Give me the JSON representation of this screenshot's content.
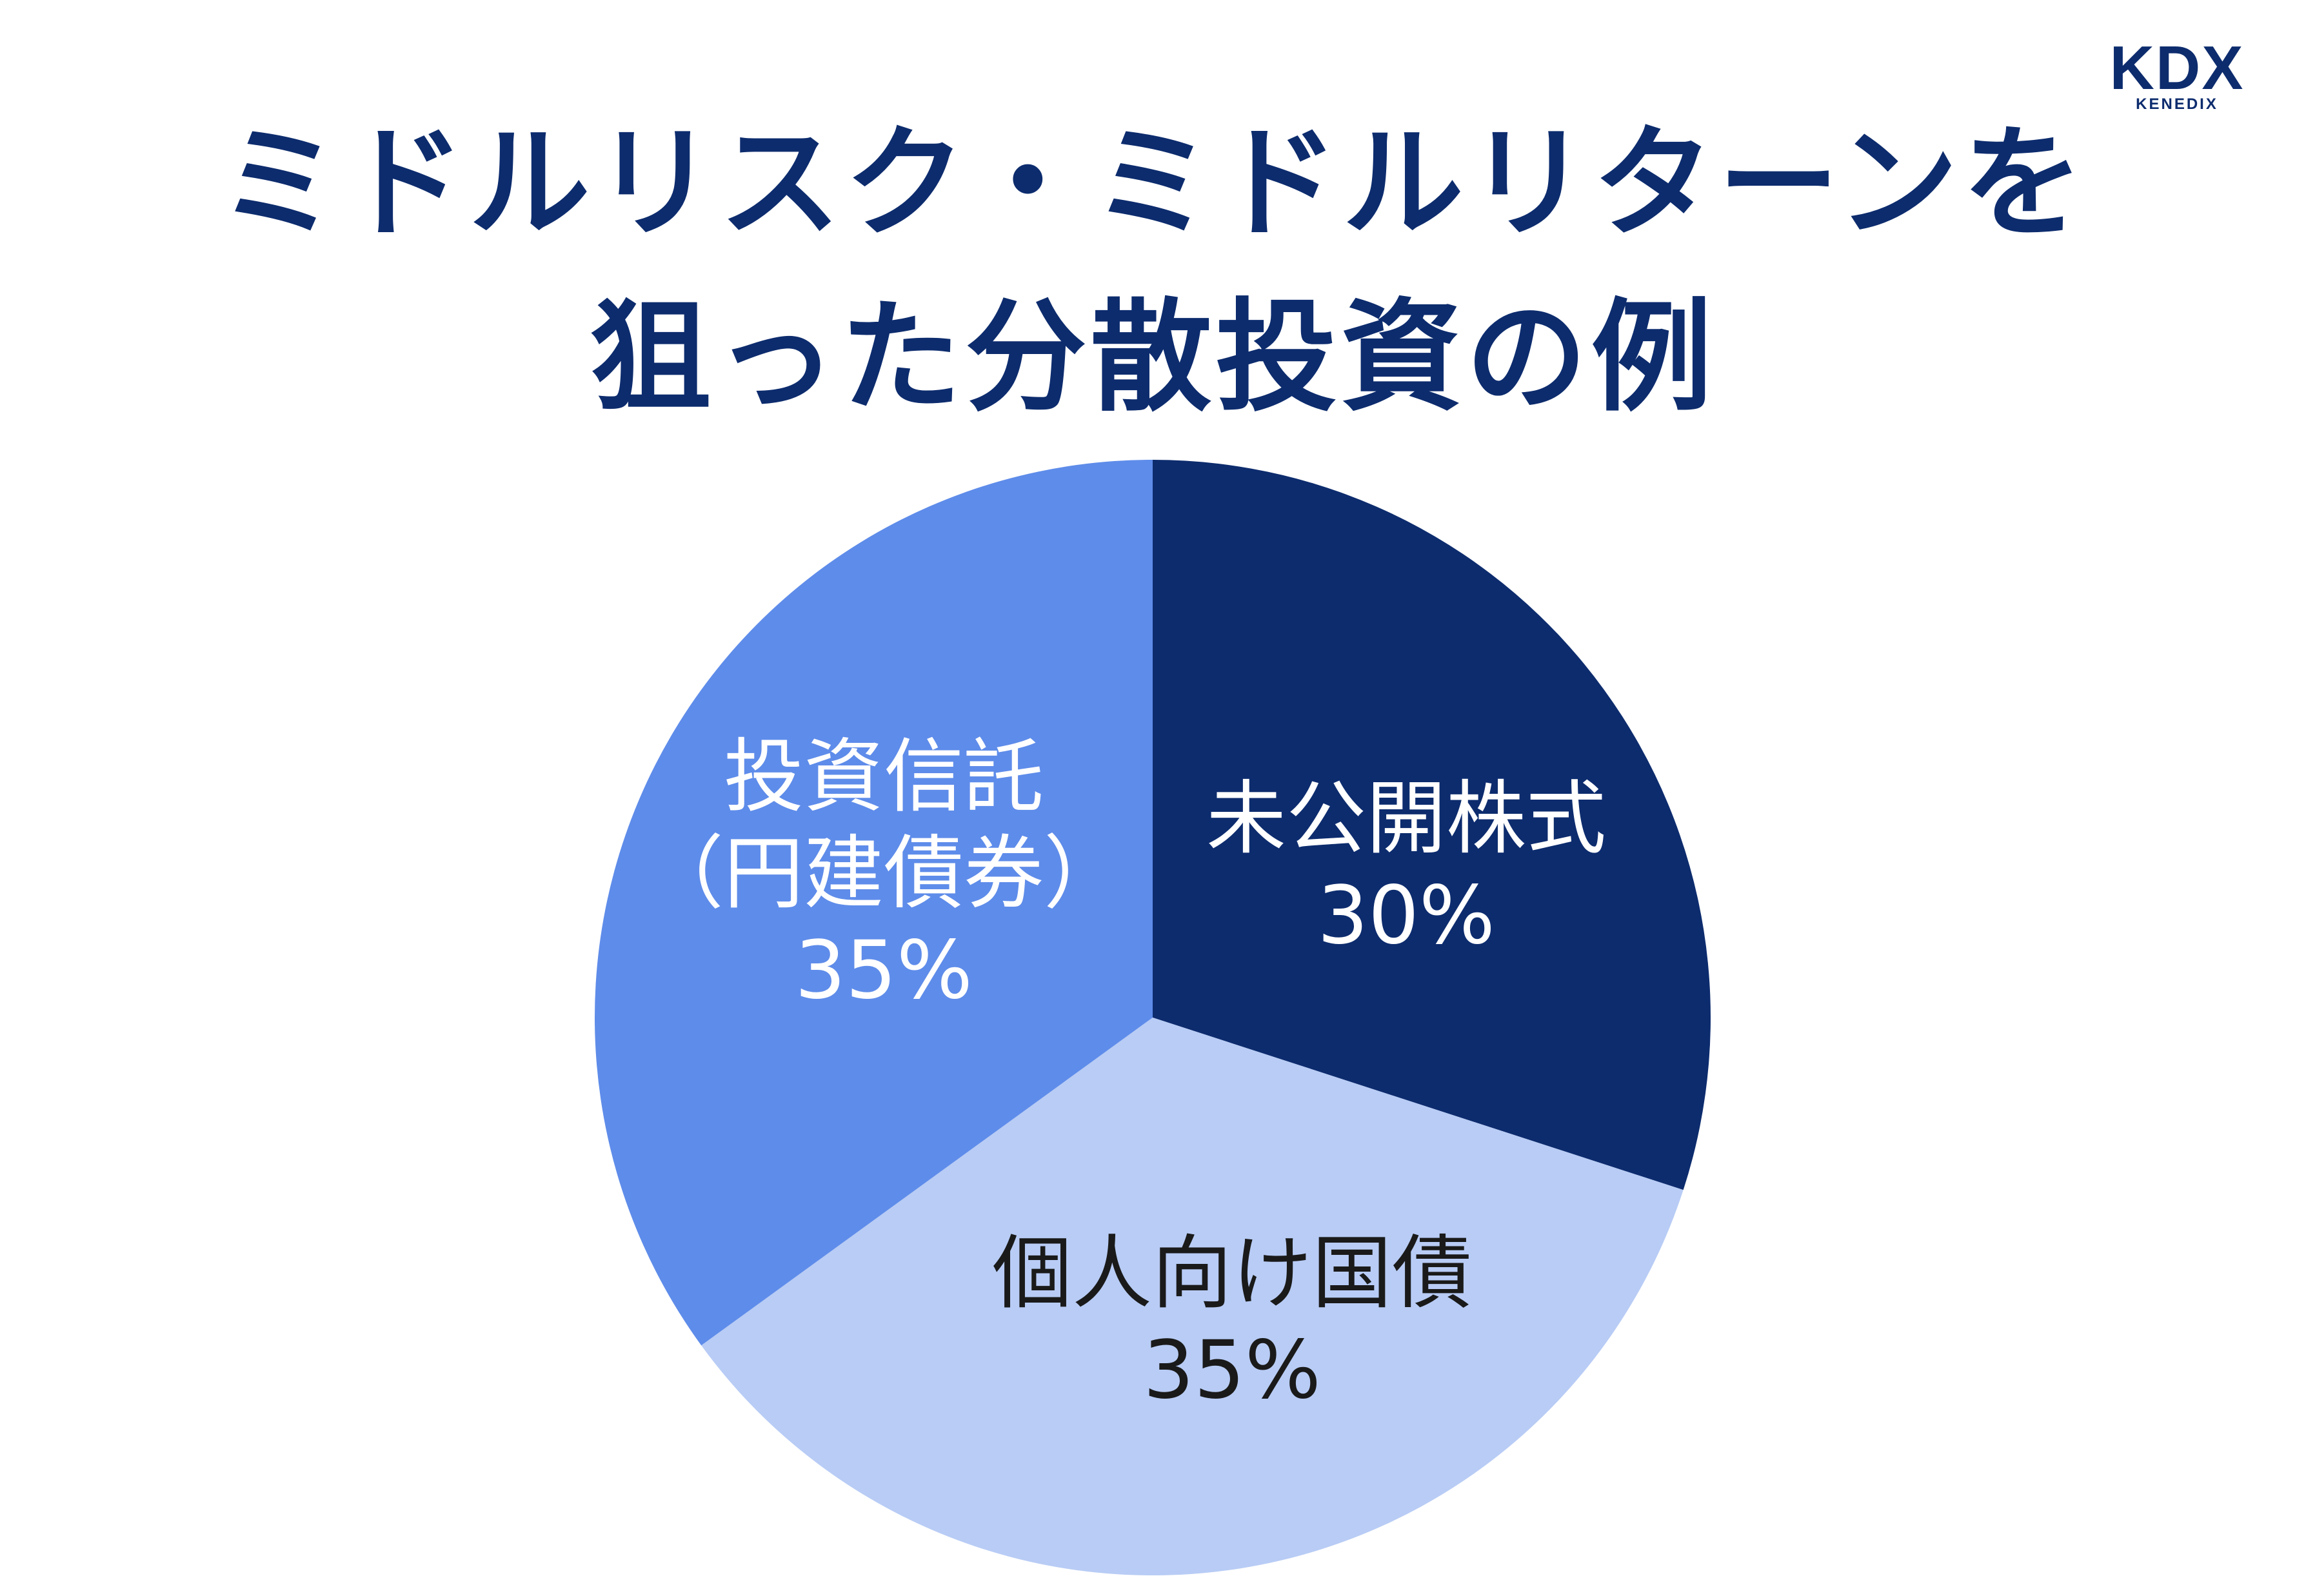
{
  "title": {
    "line1": "ミドルリスク・ミドルリターンを",
    "line2": "狙った分散投資の例"
  },
  "logo": {
    "mark": "KDX",
    "sub": "KENEDIX"
  },
  "chart_data": {
    "type": "pie",
    "title": "ミドルリスク・ミドルリターンを狙った分散投資の例",
    "slices": [
      {
        "name": "未公開株式",
        "value": 30,
        "label": "30%",
        "color": "#0d2c6e"
      },
      {
        "name": "個人向け国債",
        "value": 35,
        "label": "35%",
        "color": "#b8ccf5"
      },
      {
        "name": "投資信託（円建債券）",
        "value": 35,
        "label": "35%",
        "color": "#5e8cea"
      }
    ]
  },
  "labels": {
    "stock": {
      "name": "未公開株式",
      "pct": "30%"
    },
    "bond": {
      "name": "個人向け国債",
      "pct": "35%"
    },
    "fund": {
      "line1": "投資信託",
      "line2": "（円建債券）",
      "pct": "35%"
    }
  }
}
